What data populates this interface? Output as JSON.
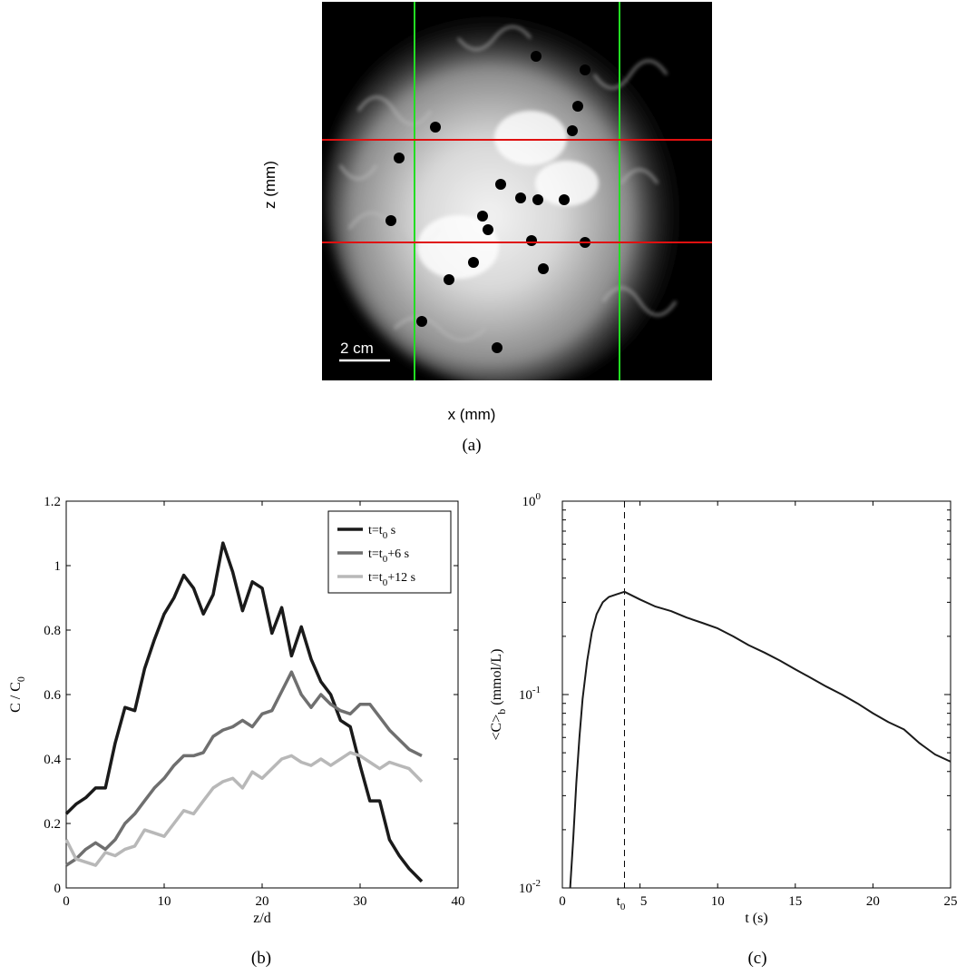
{
  "panel_a": {
    "xlabel": "x (mm)",
    "ylabel": "z (mm)",
    "scale_bar": "2 cm",
    "caption": "(a)",
    "line_colors": {
      "vertical": "#22dd22",
      "horizontal": "#e01010"
    }
  },
  "panel_b": {
    "caption": "(b)"
  },
  "panel_c": {
    "caption": "(c)"
  },
  "chart_data": [
    {
      "type": "line",
      "xlabel": "z/d",
      "ylabel": "C / C0",
      "xlim": [
        0,
        40
      ],
      "ylim": [
        0,
        1.2
      ],
      "xticks": [
        0,
        10,
        20,
        30,
        40
      ],
      "yticks": [
        0,
        0.2,
        0.4,
        0.6,
        0.8,
        1,
        1.2
      ],
      "ytick_labels": [
        "0",
        "0.2",
        "0.4",
        "0.6",
        "0.8",
        "1",
        "1.2"
      ],
      "legend": {
        "placement": "top-right"
      },
      "series": [
        {
          "name": "t=t0 s",
          "label_main": "t=t",
          "label_sub": "0",
          "label_tail": " s",
          "color": "#1a1a1a",
          "x": [
            0,
            1,
            2,
            3,
            4,
            5,
            6,
            7,
            8,
            9,
            10,
            11,
            12,
            13,
            14,
            15,
            16,
            17,
            18,
            19,
            20,
            21,
            22,
            23,
            24,
            25,
            26,
            27,
            28,
            29,
            30,
            31,
            32,
            33,
            34,
            35,
            36.3
          ],
          "y": [
            0.23,
            0.26,
            0.28,
            0.31,
            0.31,
            0.45,
            0.56,
            0.55,
            0.68,
            0.77,
            0.85,
            0.9,
            0.97,
            0.93,
            0.85,
            0.91,
            1.07,
            0.98,
            0.86,
            0.95,
            0.93,
            0.79,
            0.87,
            0.72,
            0.81,
            0.71,
            0.64,
            0.6,
            0.52,
            0.5,
            0.38,
            0.27,
            0.27,
            0.15,
            0.1,
            0.06,
            0.02
          ]
        },
        {
          "name": "t=t0+6 s",
          "label_main": "t=t",
          "label_sub": "0",
          "label_tail": "+6 s",
          "color": "#6f6f6f",
          "x": [
            0,
            1,
            2,
            3,
            4,
            5,
            6,
            7,
            8,
            9,
            10,
            11,
            12,
            13,
            14,
            15,
            16,
            17,
            18,
            19,
            20,
            21,
            22,
            23,
            24,
            25,
            26,
            27,
            28,
            29,
            30,
            31,
            32,
            33,
            34,
            35,
            36.3
          ],
          "y": [
            0.07,
            0.09,
            0.12,
            0.14,
            0.12,
            0.15,
            0.2,
            0.23,
            0.27,
            0.31,
            0.34,
            0.38,
            0.41,
            0.41,
            0.42,
            0.47,
            0.49,
            0.5,
            0.52,
            0.5,
            0.54,
            0.55,
            0.61,
            0.67,
            0.6,
            0.56,
            0.6,
            0.57,
            0.55,
            0.54,
            0.57,
            0.57,
            0.53,
            0.49,
            0.46,
            0.43,
            0.41
          ]
        },
        {
          "name": "t=t0+12 s",
          "label_main": "t=t",
          "label_sub": "0",
          "label_tail": "+12 s",
          "color": "#b8b8b8",
          "x": [
            0,
            1,
            2,
            3,
            4,
            5,
            6,
            7,
            8,
            9,
            10,
            11,
            12,
            13,
            14,
            15,
            16,
            17,
            18,
            19,
            20,
            21,
            22,
            23,
            24,
            25,
            26,
            27,
            28,
            29,
            30,
            31,
            32,
            33,
            34,
            35,
            36.3
          ],
          "y": [
            0.15,
            0.09,
            0.08,
            0.07,
            0.11,
            0.1,
            0.12,
            0.13,
            0.18,
            0.17,
            0.16,
            0.2,
            0.24,
            0.23,
            0.27,
            0.31,
            0.33,
            0.34,
            0.31,
            0.36,
            0.34,
            0.37,
            0.4,
            0.41,
            0.39,
            0.38,
            0.4,
            0.38,
            0.4,
            0.42,
            0.41,
            0.39,
            0.37,
            0.39,
            0.38,
            0.37,
            0.33
          ]
        }
      ]
    },
    {
      "type": "line",
      "xlabel": "t (s)",
      "ylabel": "<C>b (mmol/L)",
      "ylabel_main": "<C>",
      "ylabel_sub": "b",
      "ylabel_tail": " (mmol/L)",
      "xlim": [
        0,
        25
      ],
      "ylim": [
        0.01,
        1
      ],
      "yscale": "log",
      "xticks": [
        0,
        5,
        10,
        15,
        20,
        25
      ],
      "ytick_exponents": [
        -2,
        -1,
        0
      ],
      "marker": {
        "x": 4,
        "label_main": "t",
        "label_sub": "0"
      },
      "series": [
        {
          "color": "#1a1a1a",
          "x": [
            0.5,
            0.7,
            0.9,
            1.1,
            1.3,
            1.6,
            1.9,
            2.2,
            2.6,
            3.0,
            3.5,
            4.0,
            5,
            6,
            7,
            8,
            9,
            10,
            11,
            12,
            13,
            14,
            15,
            16,
            17,
            18,
            19,
            20,
            21,
            22,
            23,
            24,
            25
          ],
          "y": [
            0.01,
            0.018,
            0.035,
            0.06,
            0.095,
            0.15,
            0.21,
            0.26,
            0.3,
            0.32,
            0.33,
            0.34,
            0.31,
            0.285,
            0.27,
            0.25,
            0.235,
            0.22,
            0.2,
            0.18,
            0.165,
            0.15,
            0.135,
            0.122,
            0.11,
            0.1,
            0.09,
            0.08,
            0.072,
            0.066,
            0.056,
            0.049,
            0.045
          ]
        }
      ]
    }
  ]
}
